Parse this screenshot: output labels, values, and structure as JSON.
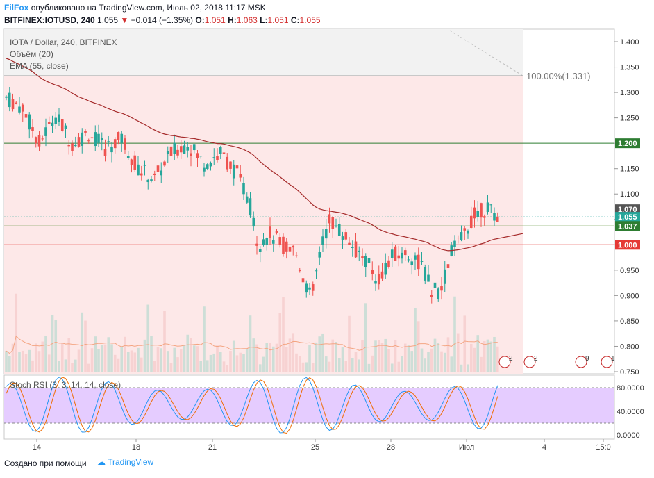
{
  "header": {
    "author": "FilFox",
    "published_text": "опубликовано на TradingView.com, Июль 02, 2018 11:17 MSK",
    "symbol": "BITFINEX:IOTUSD, 240",
    "last": "1.055",
    "change": "−0.014 (−1.35%)",
    "o_label": "O:",
    "o": "1.051",
    "h_label": "H:",
    "h": "1.063",
    "l_label": "L:",
    "l": "1.051",
    "c_label": "C:",
    "c": "1.055"
  },
  "legend": {
    "title": "IOTA / Dollar, 240, BITFINEX",
    "volume": "Объём (20)",
    "ema": "EMA (55, close)",
    "stoch": "Stoch RSI (3, 3, 14, 14, close)"
  },
  "fib_label": "100.00%(1.331)",
  "price_tags": [
    {
      "text": "1.200",
      "value": 1.2,
      "color": "#2e7d32"
    },
    {
      "text": "1.070",
      "value": 1.07,
      "color": "#555555"
    },
    {
      "text": "1.055",
      "value": 1.055,
      "color": "#26a69a"
    },
    {
      "text": "1.037",
      "value": 1.037,
      "color": "#2e7d32"
    },
    {
      "text": "1.000",
      "value": 1.0,
      "color": "#e53935"
    }
  ],
  "events": [
    {
      "count": "2"
    },
    {
      "count": "2"
    },
    {
      "count": "9"
    },
    {
      "count": "1"
    }
  ],
  "footer": {
    "created": "Создано при помощи",
    "brand": "TradingView"
  },
  "colors": {
    "up": "#26a69a",
    "down": "#ef5350",
    "ema": "#a52a2a",
    "zone": "#fde8e8",
    "stoch_band": "#e5ccff"
  },
  "chart_data": [
    {
      "type": "candlestick",
      "title": "IOTA / Dollar, 240, BITFINEX",
      "y_ticks": [
        "0.750",
        "0.800",
        "0.850",
        "0.900",
        "0.950",
        "1.000",
        "1.050",
        "1.100",
        "1.150",
        "1.200",
        "1.250",
        "1.300",
        "1.350",
        "1.400"
      ],
      "ylim": [
        0.75,
        1.42
      ],
      "x_ticks": [
        "14",
        "18",
        "21",
        "25",
        "28",
        "Июл",
        "4",
        "15:0"
      ],
      "horizontal_lines": [
        1.2,
        1.037,
        1.0
      ],
      "fib_level": {
        "label": "100.00%",
        "value": 1.331
      },
      "last_close": 1.055,
      "ema_period": 55,
      "notes": "Price trends down from ~1.30 to ~0.89 then recovers to ~1.06"
    },
    {
      "type": "line",
      "title": "Stoch RSI (3, 3, 14, 14, close)",
      "y_ticks": [
        "0.0000",
        "40.0000",
        "80.0000"
      ],
      "ylim": [
        -5,
        100
      ],
      "bands": [
        20,
        80
      ]
    }
  ]
}
